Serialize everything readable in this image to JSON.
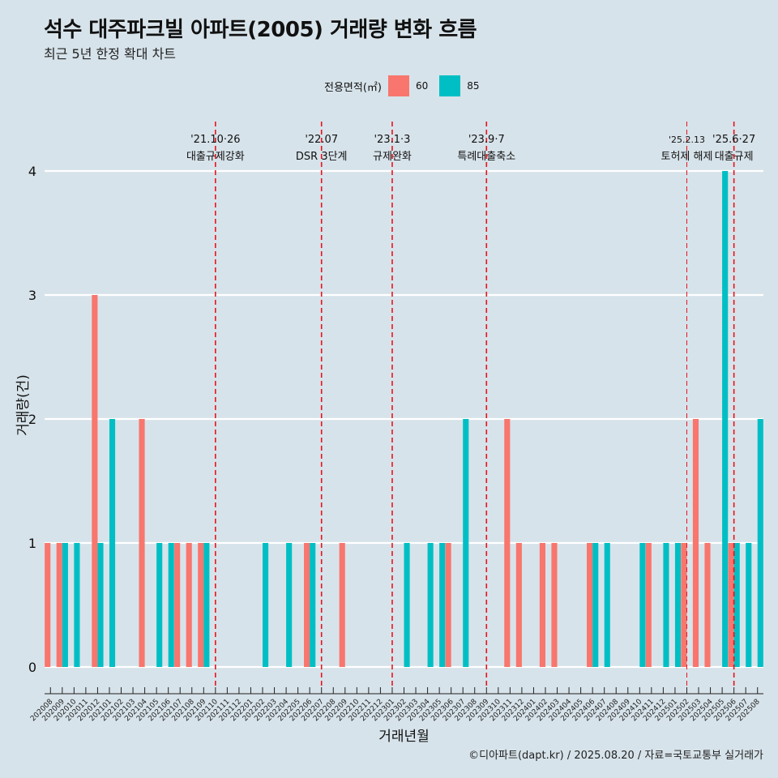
{
  "header": {
    "title": "석수 대주파크빌 아파트(2005) 거래량 변화 흐름",
    "subtitle": "최근 5년 한정 확대 차트"
  },
  "legend": {
    "title": "전용면적(㎡)",
    "items": [
      {
        "label": "60",
        "color": "#f8766d"
      },
      {
        "label": "85",
        "color": "#00bfc4"
      }
    ]
  },
  "caption": "©디아파트(dapt.kr) / 2025.08.20 / 자료=국토교통부 실거래가",
  "chart_data": {
    "type": "bar",
    "title": "석수 대주파크빌 아파트(2005) 거래량 변화 흐름",
    "subtitle": "최근 5년 한정 확대 차트",
    "xlabel": "거래년월",
    "ylabel": "거래량(건)",
    "ylim": [
      0,
      4
    ],
    "yticks": [
      0,
      1,
      2,
      3,
      4
    ],
    "grid": true,
    "legend_position": "top",
    "categories": [
      "202008",
      "202009",
      "202010",
      "202011",
      "202012",
      "202101",
      "202102",
      "202103",
      "202104",
      "202105",
      "202106",
      "202107",
      "202108",
      "202109",
      "202110",
      "202111",
      "202112",
      "202201",
      "202202",
      "202203",
      "202204",
      "202205",
      "202206",
      "202207",
      "202208",
      "202209",
      "202210",
      "202211",
      "202212",
      "202301",
      "202302",
      "202303",
      "202304",
      "202305",
      "202306",
      "202307",
      "202308",
      "202309",
      "202310",
      "202311",
      "202312",
      "202401",
      "202402",
      "202403",
      "202404",
      "202405",
      "202406",
      "202407",
      "202408",
      "202409",
      "202410",
      "202411",
      "202412",
      "202501",
      "202502",
      "202503",
      "202504",
      "202505",
      "202506",
      "202507",
      "202508"
    ],
    "series": [
      {
        "name": "60",
        "color": "#f8766d",
        "values": [
          1,
          1,
          0,
          0,
          3,
          0,
          0,
          0,
          2,
          0,
          0,
          1,
          1,
          1,
          0,
          0,
          0,
          0,
          0,
          0,
          0,
          0,
          1,
          0,
          0,
          1,
          0,
          0,
          0,
          0,
          0,
          0,
          0,
          0,
          1,
          0,
          0,
          0,
          0,
          2,
          1,
          0,
          1,
          1,
          0,
          0,
          1,
          0,
          0,
          0,
          0,
          1,
          0,
          0,
          1,
          2,
          1,
          0,
          1,
          0,
          0
        ]
      },
      {
        "name": "85",
        "color": "#00bfc4",
        "values": [
          0,
          1,
          1,
          0,
          1,
          2,
          0,
          0,
          0,
          1,
          1,
          0,
          0,
          1,
          0,
          0,
          0,
          0,
          1,
          0,
          1,
          0,
          1,
          0,
          0,
          0,
          0,
          0,
          0,
          0,
          1,
          0,
          1,
          1,
          0,
          2,
          0,
          0,
          0,
          0,
          0,
          0,
          0,
          0,
          0,
          0,
          1,
          1,
          0,
          0,
          1,
          0,
          1,
          1,
          0,
          0,
          0,
          4,
          1,
          1,
          2
        ]
      }
    ],
    "annotations": [
      {
        "label": "'21.10·26",
        "sublabel": "대출규제강화",
        "at": "202110"
      },
      {
        "label": "'22.07",
        "sublabel": "DSR 3단계",
        "at": "202207"
      },
      {
        "label": "'23.1·3",
        "sublabel": "규제완화",
        "at": "202301"
      },
      {
        "label": "'23.9·7",
        "sublabel": "특례대출축소",
        "at": "202309"
      },
      {
        "label": "'25.2.13",
        "sublabel": "토허제 해제",
        "at": "202502"
      },
      {
        "label": "'25.6·27",
        "sublabel": "대출규제",
        "at": "202506"
      }
    ]
  }
}
